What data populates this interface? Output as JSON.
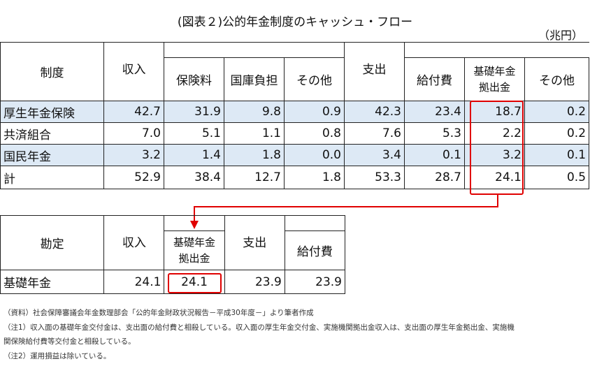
{
  "title": "(図表２)公的年金制度のキャッシュ・フロー",
  "unit": "（兆円）",
  "table1": {
    "headers": {
      "system": "制度",
      "income": "収入",
      "premium": "保険料",
      "treasury": "国庫負担",
      "other_in": "その他",
      "expense": "支出",
      "benefit": "給付費",
      "basic_contrib_line1": "基礎年金",
      "basic_contrib_line2": "拠出金",
      "other_out": "その他"
    },
    "rows": [
      {
        "name": "厚生年金保険",
        "values": [
          "42.7",
          "31.9",
          "9.8",
          "0.9",
          "42.3",
          "23.4",
          "18.7",
          "0.2"
        ]
      },
      {
        "name": "共済組合",
        "values": [
          "7.0",
          "5.1",
          "1.1",
          "0.8",
          "7.6",
          "5.3",
          "2.2",
          "0.2"
        ]
      },
      {
        "name": "国民年金",
        "values": [
          "3.2",
          "1.4",
          "1.8",
          "0.0",
          "3.4",
          "0.1",
          "3.2",
          "0.1"
        ]
      },
      {
        "name": "計",
        "values": [
          "52.9",
          "38.4",
          "12.7",
          "1.8",
          "53.3",
          "28.7",
          "24.1",
          "0.5"
        ]
      }
    ]
  },
  "table2": {
    "headers": {
      "account": "勘定",
      "income": "収入",
      "basic_recv_line1": "基礎年金",
      "basic_recv_line2": "拠出金",
      "expense": "支出",
      "benefit": "給付費"
    },
    "row": {
      "name": "基礎年金",
      "values": [
        "24.1",
        "24.1",
        "23.9",
        "23.9"
      ]
    }
  },
  "notes": [
    "（資料）社会保障審議会年金数理部会「公的年金財政状況報告－平成30年度－」より筆者作成",
    "（注1）収入面の基礎年金交付金は、支出面の給付費と相殺している。収入面の厚生年金交付金、実施機関拠出金収入は、支出面の厚生年金拠出金、実施機",
    "関保険給付費等交付金と相殺している。",
    "（注2）運用損益は除いている。"
  ],
  "highlight_color": "#e00000",
  "row_highlight_color": "#dde9f5"
}
